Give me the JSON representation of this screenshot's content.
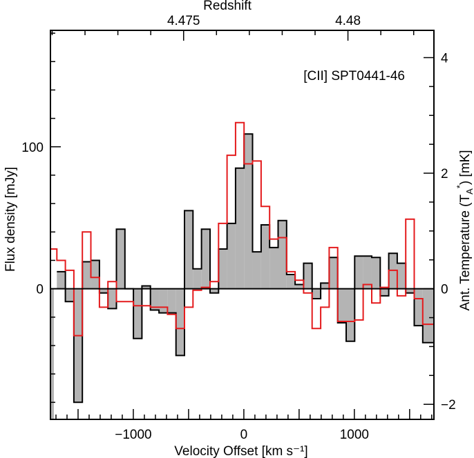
{
  "chart_data": {
    "type": "step-histogram",
    "annotation": "[CII] SPT0441-46",
    "xlabel": "Velocity Offset [km s⁻¹]",
    "ylabel_left": "Flux density [mJy]",
    "ylabel_right_parts": [
      "Ant. Temperature (T",
      "A",
      "*",
      ") [mK]"
    ],
    "top_axis_title": "Redshift",
    "xlim": [
      -1750,
      1720
    ],
    "ylim": [
      -92,
      182
    ],
    "bin_width": 77,
    "x_ticks": [
      -1000,
      0,
      1000
    ],
    "x_tick_labels": [
      "−1000",
      "0",
      "1000"
    ],
    "y_ticks": [
      0,
      100
    ],
    "y_tick_labels": [
      "0",
      "100"
    ],
    "right_axis": {
      "mjy_per_mk": 40.7,
      "ticks": [
        -2,
        0,
        2,
        4
      ],
      "tick_labels": [
        "−2",
        "0",
        "2",
        "4"
      ]
    },
    "top_axis": {
      "ticks_velocity": [
        -545,
        942
      ],
      "tick_labels": [
        "4.475",
        "4.48"
      ]
    },
    "colors": {
      "fill": "#b4b4b4",
      "observed_line": "#000000",
      "model_line": "#e41a1c"
    },
    "series": [
      {
        "name": "observed",
        "style": "filled-step",
        "x_edges": [
          -1692,
          -1615,
          -1538,
          -1461,
          -1384,
          -1307,
          -1230,
          -1153,
          -1076,
          -999,
          -922,
          -845,
          -768,
          -691,
          -614,
          -537,
          -460,
          -383,
          -306,
          -229,
          -152,
          -75,
          2,
          79,
          156,
          233,
          310,
          387,
          464,
          541,
          618,
          695,
          772,
          849,
          926,
          1003,
          1080,
          1157,
          1234,
          1311,
          1388,
          1465,
          1542,
          1619
        ],
        "values": [
          12,
          -9,
          -80,
          19,
          20,
          -3,
          -14,
          42,
          0,
          -35,
          2,
          -15,
          -17,
          -17,
          -47,
          55,
          14,
          42,
          -3,
          28,
          46,
          85,
          109,
          26,
          45,
          29,
          48,
          10,
          3,
          18,
          -7,
          4,
          22,
          -24,
          -37,
          23,
          23,
          22,
          -5,
          25,
          18,
          -3,
          -26,
          -38
        ]
      },
      {
        "name": "model",
        "style": "step",
        "x_edges": [
          -1750,
          -1692,
          -1615,
          -1538,
          -1461,
          -1384,
          -1307,
          -1230,
          -1153,
          -1076,
          -999,
          -922,
          -845,
          -768,
          -691,
          -614,
          -537,
          -460,
          -383,
          -306,
          -229,
          -152,
          -75,
          2,
          79,
          156,
          233,
          310,
          387,
          464,
          541,
          618,
          695,
          772,
          849,
          926,
          1003,
          1080,
          1157,
          1234,
          1311,
          1388,
          1465,
          1542,
          1619
        ],
        "values": [
          28,
          20,
          13,
          -33,
          40,
          8,
          -13,
          5,
          -9,
          -9,
          -12,
          -12,
          -13,
          -13,
          -18,
          -28,
          -13,
          -1,
          1,
          5,
          46,
          94,
          117,
          88,
          90,
          58,
          35,
          36,
          12,
          6,
          -3,
          -28,
          -13,
          29,
          -23,
          -23,
          -22,
          3,
          -10,
          1,
          13,
          -5,
          49,
          -7,
          -25
        ]
      }
    ]
  }
}
